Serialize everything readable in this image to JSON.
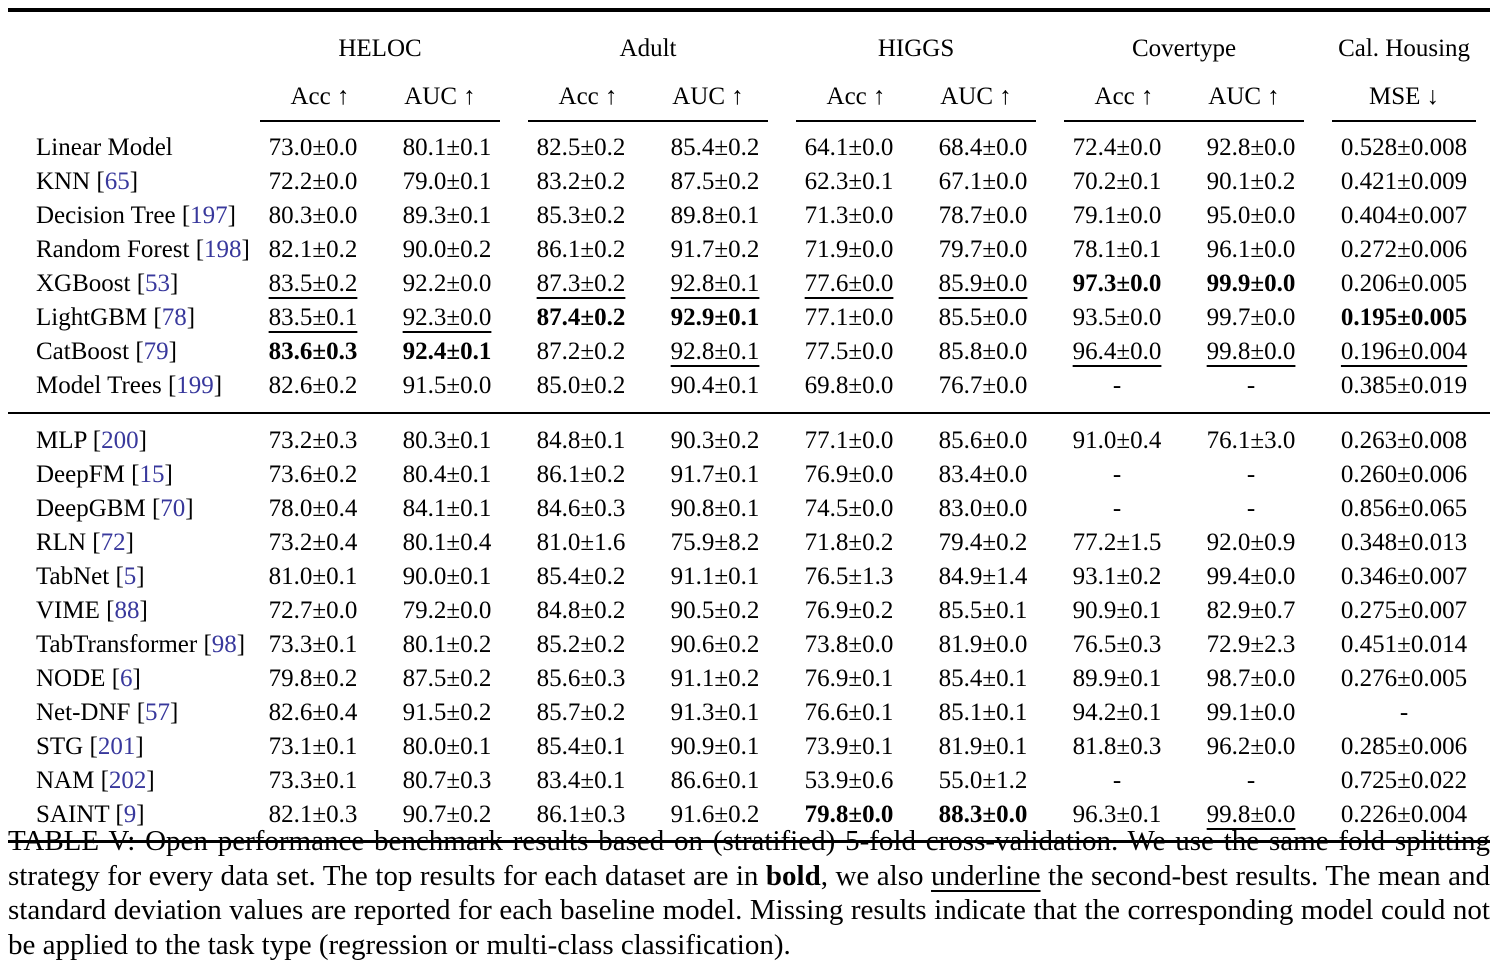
{
  "colors": {
    "citation": "#38389c",
    "text": "#000000",
    "background": "#ffffff"
  },
  "table": {
    "groups": [
      {
        "label": "HELOC",
        "cols": [
          "Acc ↑",
          "AUC ↑"
        ]
      },
      {
        "label": "Adult",
        "cols": [
          "Acc ↑",
          "AUC ↑"
        ]
      },
      {
        "label": "HIGGS",
        "cols": [
          "Acc ↑",
          "AUC ↑"
        ]
      },
      {
        "label": "Covertype",
        "cols": [
          "Acc ↑",
          "AUC ↑"
        ]
      },
      {
        "label": "Cal. Housing",
        "cols": [
          "MSE ↓"
        ]
      }
    ],
    "sections": [
      {
        "rows": [
          {
            "model": "Linear Model",
            "ref": null,
            "cells": [
              {
                "v": "73.0±0.0"
              },
              {
                "v": "80.1±0.1"
              },
              {
                "v": "82.5±0.2"
              },
              {
                "v": "85.4±0.2"
              },
              {
                "v": "64.1±0.0"
              },
              {
                "v": "68.4±0.0"
              },
              {
                "v": "72.4±0.0"
              },
              {
                "v": "92.8±0.0"
              },
              {
                "v": "0.528±0.008"
              }
            ]
          },
          {
            "model": "KNN",
            "ref": "65",
            "cells": [
              {
                "v": "72.2±0.0"
              },
              {
                "v": "79.0±0.1"
              },
              {
                "v": "83.2±0.2"
              },
              {
                "v": "87.5±0.2"
              },
              {
                "v": "62.3±0.1"
              },
              {
                "v": "67.1±0.0"
              },
              {
                "v": "70.2±0.1"
              },
              {
                "v": "90.1±0.2"
              },
              {
                "v": "0.421±0.009"
              }
            ]
          },
          {
            "model": "Decision Tree",
            "ref": "197",
            "cells": [
              {
                "v": "80.3±0.0"
              },
              {
                "v": "89.3±0.1"
              },
              {
                "v": "85.3±0.2"
              },
              {
                "v": "89.8±0.1"
              },
              {
                "v": "71.3±0.0"
              },
              {
                "v": "78.7±0.0"
              },
              {
                "v": "79.1±0.0"
              },
              {
                "v": "95.0±0.0"
              },
              {
                "v": "0.404±0.007"
              }
            ]
          },
          {
            "model": "Random Forest",
            "ref": "198",
            "cells": [
              {
                "v": "82.1±0.2"
              },
              {
                "v": "90.0±0.2"
              },
              {
                "v": "86.1±0.2"
              },
              {
                "v": "91.7±0.2"
              },
              {
                "v": "71.9±0.0"
              },
              {
                "v": "79.7±0.0"
              },
              {
                "v": "78.1±0.1"
              },
              {
                "v": "96.1±0.0"
              },
              {
                "v": "0.272±0.006"
              }
            ]
          },
          {
            "model": "XGBoost",
            "ref": "53",
            "cells": [
              {
                "v": "83.5±0.2",
                "f": "u"
              },
              {
                "v": "92.2±0.0"
              },
              {
                "v": "87.3±0.2",
                "f": "u"
              },
              {
                "v": "92.8±0.1",
                "f": "u"
              },
              {
                "v": "77.6±0.0",
                "f": "u"
              },
              {
                "v": "85.9±0.0",
                "f": "u"
              },
              {
                "v": "97.3±0.0",
                "f": "b"
              },
              {
                "v": "99.9±0.0",
                "f": "b"
              },
              {
                "v": "0.206±0.005"
              }
            ]
          },
          {
            "model": "LightGBM",
            "ref": "78",
            "cells": [
              {
                "v": "83.5±0.1",
                "f": "u"
              },
              {
                "v": "92.3±0.0",
                "f": "u"
              },
              {
                "v": "87.4±0.2",
                "f": "b"
              },
              {
                "v": "92.9±0.1",
                "f": "b"
              },
              {
                "v": "77.1±0.0"
              },
              {
                "v": "85.5±0.0"
              },
              {
                "v": "93.5±0.0"
              },
              {
                "v": "99.7±0.0"
              },
              {
                "v": "0.195±0.005",
                "f": "b"
              }
            ]
          },
          {
            "model": "CatBoost",
            "ref": "79",
            "cells": [
              {
                "v": "83.6±0.3",
                "f": "b"
              },
              {
                "v": "92.4±0.1",
                "f": "b"
              },
              {
                "v": "87.2±0.2"
              },
              {
                "v": "92.8±0.1",
                "f": "u"
              },
              {
                "v": "77.5±0.0"
              },
              {
                "v": "85.8±0.0"
              },
              {
                "v": "96.4±0.0",
                "f": "u"
              },
              {
                "v": "99.8±0.0",
                "f": "u"
              },
              {
                "v": "0.196±0.004",
                "f": "u"
              }
            ]
          },
          {
            "model": "Model Trees",
            "ref": "199",
            "cells": [
              {
                "v": "82.6±0.2"
              },
              {
                "v": "91.5±0.0"
              },
              {
                "v": "85.0±0.2"
              },
              {
                "v": "90.4±0.1"
              },
              {
                "v": "69.8±0.0"
              },
              {
                "v": "76.7±0.0"
              },
              {
                "v": "-"
              },
              {
                "v": "-"
              },
              {
                "v": "0.385±0.019"
              }
            ]
          }
        ]
      },
      {
        "rows": [
          {
            "model": "MLP",
            "ref": "200",
            "cells": [
              {
                "v": "73.2±0.3"
              },
              {
                "v": "80.3±0.1"
              },
              {
                "v": "84.8±0.1"
              },
              {
                "v": "90.3±0.2"
              },
              {
                "v": "77.1±0.0"
              },
              {
                "v": "85.6±0.0"
              },
              {
                "v": "91.0±0.4"
              },
              {
                "v": "76.1±3.0"
              },
              {
                "v": "0.263±0.008"
              }
            ]
          },
          {
            "model": "DeepFM",
            "ref": "15",
            "cells": [
              {
                "v": "73.6±0.2"
              },
              {
                "v": "80.4±0.1"
              },
              {
                "v": "86.1±0.2"
              },
              {
                "v": "91.7±0.1"
              },
              {
                "v": "76.9±0.0"
              },
              {
                "v": "83.4±0.0"
              },
              {
                "v": "-"
              },
              {
                "v": "-"
              },
              {
                "v": "0.260±0.006"
              }
            ]
          },
          {
            "model": "DeepGBM",
            "ref": "70",
            "cells": [
              {
                "v": "78.0±0.4"
              },
              {
                "v": "84.1±0.1"
              },
              {
                "v": "84.6±0.3"
              },
              {
                "v": "90.8±0.1"
              },
              {
                "v": "74.5±0.0"
              },
              {
                "v": "83.0±0.0"
              },
              {
                "v": "-"
              },
              {
                "v": "-"
              },
              {
                "v": "0.856±0.065"
              }
            ]
          },
          {
            "model": "RLN",
            "ref": "72",
            "cells": [
              {
                "v": "73.2±0.4"
              },
              {
                "v": "80.1±0.4"
              },
              {
                "v": "81.0±1.6"
              },
              {
                "v": "75.9±8.2"
              },
              {
                "v": "71.8±0.2"
              },
              {
                "v": "79.4±0.2"
              },
              {
                "v": "77.2±1.5"
              },
              {
                "v": "92.0±0.9"
              },
              {
                "v": "0.348±0.013"
              }
            ]
          },
          {
            "model": "TabNet",
            "ref": "5",
            "cells": [
              {
                "v": "81.0±0.1"
              },
              {
                "v": "90.0±0.1"
              },
              {
                "v": "85.4±0.2"
              },
              {
                "v": "91.1±0.1"
              },
              {
                "v": "76.5±1.3"
              },
              {
                "v": "84.9±1.4"
              },
              {
                "v": "93.1±0.2"
              },
              {
                "v": "99.4±0.0"
              },
              {
                "v": "0.346±0.007"
              }
            ]
          },
          {
            "model": "VIME",
            "ref": "88",
            "cells": [
              {
                "v": "72.7±0.0"
              },
              {
                "v": "79.2±0.0"
              },
              {
                "v": "84.8±0.2"
              },
              {
                "v": "90.5±0.2"
              },
              {
                "v": "76.9±0.2"
              },
              {
                "v": "85.5±0.1"
              },
              {
                "v": "90.9±0.1"
              },
              {
                "v": "82.9±0.7"
              },
              {
                "v": "0.275±0.007"
              }
            ]
          },
          {
            "model": "TabTransformer",
            "ref": "98",
            "cells": [
              {
                "v": "73.3±0.1"
              },
              {
                "v": "80.1±0.2"
              },
              {
                "v": "85.2±0.2"
              },
              {
                "v": "90.6±0.2"
              },
              {
                "v": "73.8±0.0"
              },
              {
                "v": "81.9±0.0"
              },
              {
                "v": "76.5±0.3"
              },
              {
                "v": "72.9±2.3"
              },
              {
                "v": "0.451±0.014"
              }
            ]
          },
          {
            "model": "NODE",
            "ref": "6",
            "cells": [
              {
                "v": "79.8±0.2"
              },
              {
                "v": "87.5±0.2"
              },
              {
                "v": "85.6±0.3"
              },
              {
                "v": "91.1±0.2"
              },
              {
                "v": "76.9±0.1"
              },
              {
                "v": "85.4±0.1"
              },
              {
                "v": "89.9±0.1"
              },
              {
                "v": "98.7±0.0"
              },
              {
                "v": "0.276±0.005"
              }
            ]
          },
          {
            "model": "Net-DNF",
            "ref": "57",
            "cells": [
              {
                "v": "82.6±0.4"
              },
              {
                "v": "91.5±0.2"
              },
              {
                "v": "85.7±0.2"
              },
              {
                "v": "91.3±0.1"
              },
              {
                "v": "76.6±0.1"
              },
              {
                "v": "85.1±0.1"
              },
              {
                "v": "94.2±0.1"
              },
              {
                "v": "99.1±0.0"
              },
              {
                "v": "-"
              }
            ]
          },
          {
            "model": "STG",
            "ref": "201",
            "cells": [
              {
                "v": "73.1±0.1"
              },
              {
                "v": "80.0±0.1"
              },
              {
                "v": "85.4±0.1"
              },
              {
                "v": "90.9±0.1"
              },
              {
                "v": "73.9±0.1"
              },
              {
                "v": "81.9±0.1"
              },
              {
                "v": "81.8±0.3"
              },
              {
                "v": "96.2±0.0"
              },
              {
                "v": "0.285±0.006"
              }
            ]
          },
          {
            "model": "NAM",
            "ref": "202",
            "cells": [
              {
                "v": "73.3±0.1"
              },
              {
                "v": "80.7±0.3"
              },
              {
                "v": "83.4±0.1"
              },
              {
                "v": "86.6±0.1"
              },
              {
                "v": "53.9±0.6"
              },
              {
                "v": "55.0±1.2"
              },
              {
                "v": "-"
              },
              {
                "v": "-"
              },
              {
                "v": "0.725±0.022"
              }
            ]
          },
          {
            "model": "SAINT",
            "ref": "9",
            "cells": [
              {
                "v": "82.1±0.3"
              },
              {
                "v": "90.7±0.2"
              },
              {
                "v": "86.1±0.3"
              },
              {
                "v": "91.6±0.2"
              },
              {
                "v": "79.8±0.0",
                "f": "b"
              },
              {
                "v": "88.3±0.0",
                "f": "b"
              },
              {
                "v": "96.3±0.1"
              },
              {
                "v": "99.8±0.0",
                "f": "u"
              },
              {
                "v": "0.226±0.004"
              }
            ]
          }
        ]
      }
    ]
  },
  "caption": {
    "segments": [
      {
        "text": "TABLE V: Open performance benchmark results based on (stratified) 5-fold cross-validation. We use the same fold splitting strategy for every data set. The top results for each dataset are in "
      },
      {
        "text": "bold",
        "f": "b"
      },
      {
        "text": ", we also "
      },
      {
        "text": "underline",
        "f": "u"
      },
      {
        "text": " the second-best results. The mean and standard deviation values are reported for each baseline model. Missing results indicate that the corresponding model could not be applied to the task type (regression or multi-class classification)."
      }
    ]
  }
}
